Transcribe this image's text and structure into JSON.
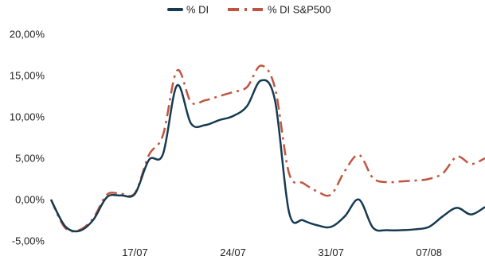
{
  "chart_data": {
    "type": "line",
    "title": "",
    "xlabel": "",
    "ylabel": "",
    "ylim": [
      -5,
      20
    ],
    "y_ticks": [
      -5,
      0,
      5,
      10,
      15,
      20
    ],
    "y_tick_labels": [
      "-5,00%",
      "0,00%",
      "5,00%",
      "10,00%",
      "15,00%",
      "20,00%"
    ],
    "x_range": [
      "2023-07-11",
      "2023-08-11"
    ],
    "x_ticks": [
      "2023-07-17",
      "2023-07-24",
      "2023-07-31",
      "2023-08-07"
    ],
    "x_tick_labels": [
      "17/07",
      "24/07",
      "31/07",
      "07/08"
    ],
    "grid": false,
    "legend": "top-center",
    "series": [
      {
        "name": "% DI",
        "color": "#163a52",
        "style": "solid",
        "points": [
          [
            "2023-07-11",
            0.0
          ],
          [
            "2023-07-12",
            -3.2
          ],
          [
            "2023-07-13",
            -3.8
          ],
          [
            "2023-07-14",
            -2.5
          ],
          [
            "2023-07-15",
            0.3
          ],
          [
            "2023-07-16",
            0.5
          ],
          [
            "2023-07-17",
            0.7
          ],
          [
            "2023-07-18",
            4.8
          ],
          [
            "2023-07-19",
            5.5
          ],
          [
            "2023-07-20",
            13.8
          ],
          [
            "2023-07-21",
            9.2
          ],
          [
            "2023-07-22",
            9.0
          ],
          [
            "2023-07-23",
            9.6
          ],
          [
            "2023-07-24",
            10.1
          ],
          [
            "2023-07-25",
            11.3
          ],
          [
            "2023-07-26",
            14.4
          ],
          [
            "2023-07-27",
            12.0
          ],
          [
            "2023-07-28",
            -1.5
          ],
          [
            "2023-07-29",
            -2.5
          ],
          [
            "2023-07-30",
            -3.1
          ],
          [
            "2023-07-31",
            -3.3
          ],
          [
            "2023-08-01",
            -2.0
          ],
          [
            "2023-08-02",
            0.0
          ],
          [
            "2023-08-03",
            -3.4
          ],
          [
            "2023-08-04",
            -3.7
          ],
          [
            "2023-08-05",
            -3.7
          ],
          [
            "2023-08-06",
            -3.6
          ],
          [
            "2023-08-07",
            -3.3
          ],
          [
            "2023-08-08",
            -2.0
          ],
          [
            "2023-08-09",
            -1.0
          ],
          [
            "2023-08-10",
            -1.8
          ],
          [
            "2023-08-11",
            -0.9
          ]
        ]
      },
      {
        "name": "% DI S&P500",
        "color": "#c0553f",
        "style": "dash-dot",
        "points": [
          [
            "2023-07-11",
            0.0
          ],
          [
            "2023-07-12",
            -3.4
          ],
          [
            "2023-07-13",
            -3.7
          ],
          [
            "2023-07-14",
            -2.3
          ],
          [
            "2023-07-15",
            0.6
          ],
          [
            "2023-07-16",
            0.7
          ],
          [
            "2023-07-17",
            0.8
          ],
          [
            "2023-07-18",
            5.4
          ],
          [
            "2023-07-19",
            7.8
          ],
          [
            "2023-07-20",
            15.6
          ],
          [
            "2023-07-21",
            11.8
          ],
          [
            "2023-07-22",
            12.0
          ],
          [
            "2023-07-23",
            12.5
          ],
          [
            "2023-07-24",
            13.0
          ],
          [
            "2023-07-25",
            13.6
          ],
          [
            "2023-07-26",
            16.2
          ],
          [
            "2023-07-27",
            13.5
          ],
          [
            "2023-07-28",
            3.2
          ],
          [
            "2023-07-29",
            2.0
          ],
          [
            "2023-07-30",
            1.0
          ],
          [
            "2023-07-31",
            0.6
          ],
          [
            "2023-08-01",
            3.5
          ],
          [
            "2023-08-02",
            5.4
          ],
          [
            "2023-08-03",
            2.6
          ],
          [
            "2023-08-04",
            2.1
          ],
          [
            "2023-08-05",
            2.2
          ],
          [
            "2023-08-06",
            2.3
          ],
          [
            "2023-08-07",
            2.5
          ],
          [
            "2023-08-08",
            3.2
          ],
          [
            "2023-08-09",
            5.2
          ],
          [
            "2023-08-10",
            4.3
          ],
          [
            "2023-08-11",
            5.0
          ]
        ]
      }
    ]
  }
}
